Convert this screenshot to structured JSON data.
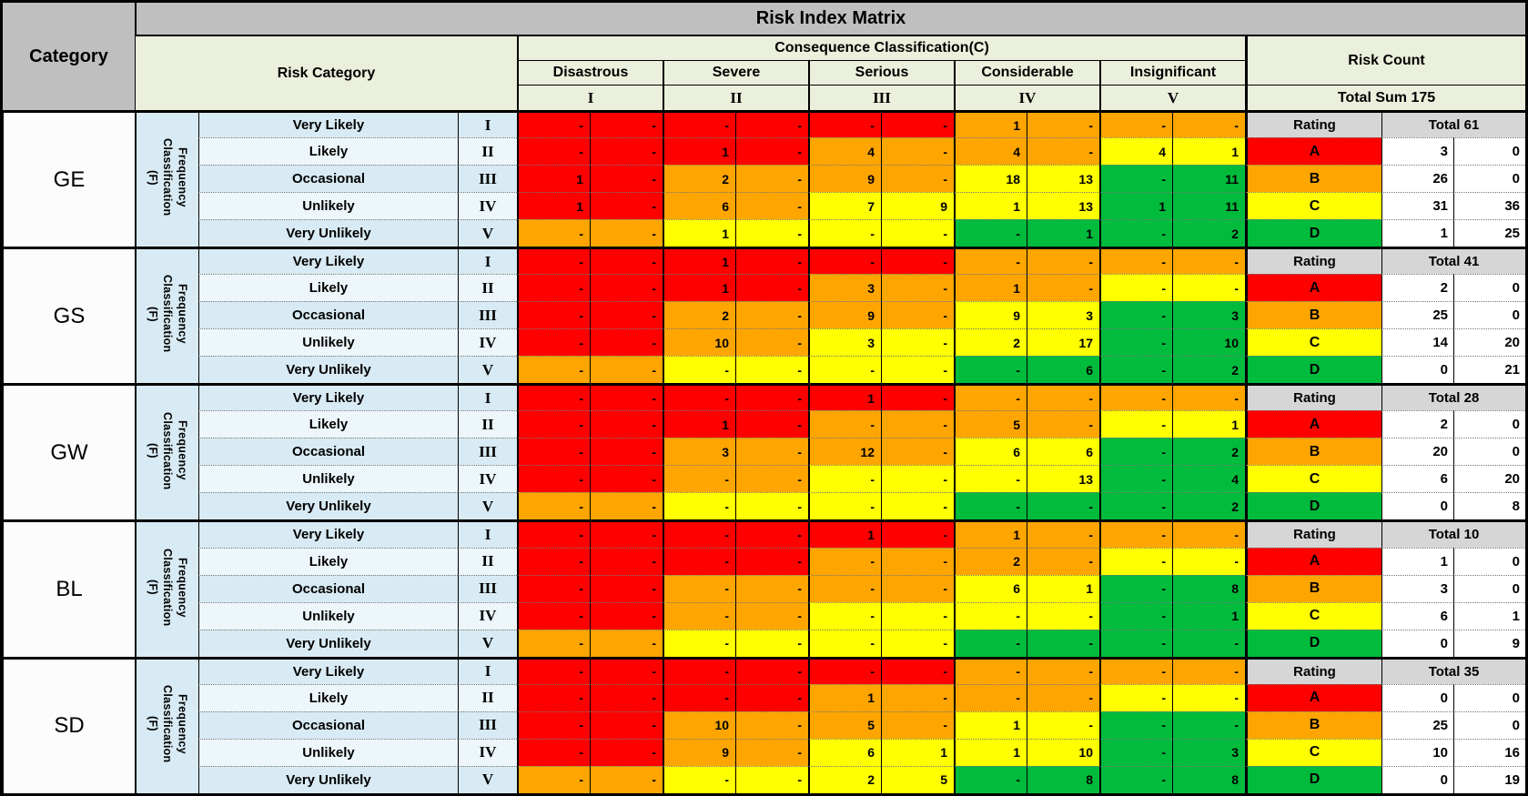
{
  "chart_data": {
    "type": "heatmap",
    "title": "Risk Index Matrix",
    "left_header": "Category",
    "risk_category_header": "Risk Category",
    "risk_count_header": "Risk Count",
    "total_sum_label": "Total Sum 175",
    "rating_header": "Rating",
    "x_axis": {
      "label": "Consequence Classification(C)",
      "categories": [
        "Disastrous",
        "Severe",
        "Serious",
        "Considerable",
        "Insignificant"
      ],
      "numerals": [
        "I",
        "II",
        "III",
        "IV",
        "V"
      ]
    },
    "y_axis": {
      "label_lines": [
        "Frequency",
        "Classification",
        "(F)"
      ],
      "categories": [
        "Very Likely",
        "Likely",
        "Occasional",
        "Unlikely",
        "Very Unlikely"
      ],
      "numerals": [
        "I",
        "II",
        "III",
        "IV",
        "V"
      ]
    },
    "cell_colors": {
      "R": "#FE0000",
      "O": "#FFA500",
      "Y": "#FFFF00",
      "G": "#00BB3C"
    },
    "color_pattern": [
      "RRRRRROOOO",
      "RRRROOOOYY",
      "RROOOOYYGG",
      "RROOYYYYGG",
      "OOYYYYGGGG"
    ],
    "ratings": [
      {
        "letter": "A",
        "color": "R"
      },
      {
        "letter": "B",
        "color": "O"
      },
      {
        "letter": "C",
        "color": "Y"
      },
      {
        "letter": "D",
        "color": "G"
      }
    ],
    "blocks": [
      {
        "category": "GE",
        "total_label": "Total 61",
        "matrix": [
          [
            "-",
            "-",
            "-",
            "-",
            "-",
            "-",
            "1",
            "-",
            "-",
            "-"
          ],
          [
            "-",
            "-",
            "1",
            "-",
            "4",
            "-",
            "4",
            "-",
            "4",
            "1"
          ],
          [
            "1",
            "-",
            "2",
            "-",
            "9",
            "-",
            "18",
            "13",
            "-",
            "11"
          ],
          [
            "1",
            "-",
            "6",
            "-",
            "7",
            "9",
            "1",
            "13",
            "1",
            "11"
          ],
          [
            "-",
            "-",
            "1",
            "-",
            "-",
            "-",
            "-",
            "1",
            "-",
            "2"
          ]
        ],
        "rating_totals": [
          [
            "3",
            "0"
          ],
          [
            "26",
            "0"
          ],
          [
            "31",
            "36"
          ],
          [
            "1",
            "25"
          ]
        ]
      },
      {
        "category": "GS",
        "total_label": "Total 41",
        "matrix": [
          [
            "-",
            "-",
            "1",
            "-",
            "-",
            "-",
            "-",
            "-",
            "-",
            "-"
          ],
          [
            "-",
            "-",
            "1",
            "-",
            "3",
            "-",
            "1",
            "-",
            "-",
            "-"
          ],
          [
            "-",
            "-",
            "2",
            "-",
            "9",
            "-",
            "9",
            "3",
            "-",
            "3"
          ],
          [
            "-",
            "-",
            "10",
            "-",
            "3",
            "-",
            "2",
            "17",
            "-",
            "10"
          ],
          [
            "-",
            "-",
            "-",
            "-",
            "-",
            "-",
            "-",
            "6",
            "-",
            "2"
          ]
        ],
        "rating_totals": [
          [
            "2",
            "0"
          ],
          [
            "25",
            "0"
          ],
          [
            "14",
            "20"
          ],
          [
            "0",
            "21"
          ]
        ]
      },
      {
        "category": "GW",
        "total_label": "Total 28",
        "matrix": [
          [
            "-",
            "-",
            "-",
            "-",
            "1",
            "-",
            "-",
            "-",
            "-",
            "-"
          ],
          [
            "-",
            "-",
            "1",
            "-",
            "-",
            "-",
            "5",
            "-",
            "-",
            "1"
          ],
          [
            "-",
            "-",
            "3",
            "-",
            "12",
            "-",
            "6",
            "6",
            "-",
            "2"
          ],
          [
            "-",
            "-",
            "-",
            "-",
            "-",
            "-",
            "-",
            "13",
            "-",
            "4"
          ],
          [
            "-",
            "-",
            "-",
            "-",
            "-",
            "-",
            "-",
            "-",
            "-",
            "2"
          ]
        ],
        "rating_totals": [
          [
            "2",
            "0"
          ],
          [
            "20",
            "0"
          ],
          [
            "6",
            "20"
          ],
          [
            "0",
            "8"
          ]
        ]
      },
      {
        "category": "BL",
        "total_label": "Total 10",
        "matrix": [
          [
            "-",
            "-",
            "-",
            "-",
            "1",
            "-",
            "1",
            "-",
            "-",
            "-"
          ],
          [
            "-",
            "-",
            "-",
            "-",
            "-",
            "-",
            "2",
            "-",
            "-",
            "-"
          ],
          [
            "-",
            "-",
            "-",
            "-",
            "-",
            "-",
            "6",
            "1",
            "-",
            "8"
          ],
          [
            "-",
            "-",
            "-",
            "-",
            "-",
            "-",
            "-",
            "-",
            "-",
            "1"
          ],
          [
            "-",
            "-",
            "-",
            "-",
            "-",
            "-",
            "-",
            "-",
            "-",
            "-"
          ]
        ],
        "rating_totals": [
          [
            "1",
            "0"
          ],
          [
            "3",
            "0"
          ],
          [
            "6",
            "1"
          ],
          [
            "0",
            "9"
          ]
        ]
      },
      {
        "category": "SD",
        "total_label": "Total 35",
        "matrix": [
          [
            "-",
            "-",
            "-",
            "-",
            "-",
            "-",
            "-",
            "-",
            "-",
            "-"
          ],
          [
            "-",
            "-",
            "-",
            "-",
            "1",
            "-",
            "-",
            "-",
            "-",
            "-"
          ],
          [
            "-",
            "-",
            "10",
            "-",
            "5",
            "-",
            "1",
            "-",
            "-",
            "-"
          ],
          [
            "-",
            "-",
            "9",
            "-",
            "6",
            "1",
            "1",
            "10",
            "-",
            "3"
          ],
          [
            "-",
            "-",
            "-",
            "-",
            "2",
            "5",
            "-",
            "8",
            "-",
            "8"
          ]
        ],
        "rating_totals": [
          [
            "0",
            "0"
          ],
          [
            "25",
            "0"
          ],
          [
            "10",
            "16"
          ],
          [
            "0",
            "19"
          ]
        ]
      }
    ]
  }
}
